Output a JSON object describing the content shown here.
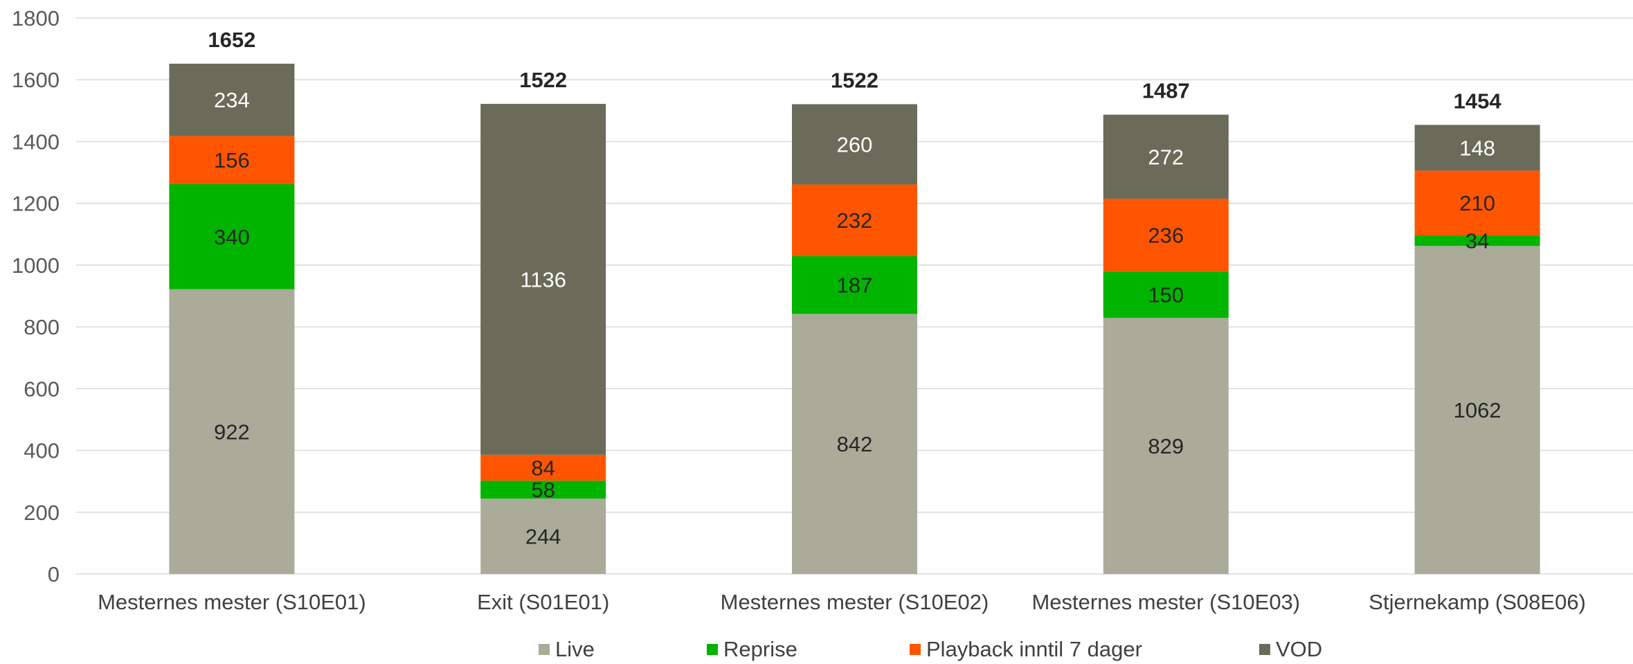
{
  "chart_data": {
    "type": "bar",
    "stacked": true,
    "categories": [
      "Mesternes mester (S10E01)",
      "Exit (S01E01)",
      "Mesternes mester (S10E02)",
      "Mesternes mester (S10E03)",
      "Stjernekamp (S08E06)"
    ],
    "series": [
      {
        "name": "Live",
        "color": "#aaab99",
        "values": [
          922,
          244,
          842,
          829,
          1062
        ]
      },
      {
        "name": "Reprise",
        "color": "#00b400",
        "values": [
          340,
          58,
          187,
          150,
          34
        ]
      },
      {
        "name": "Playback inntil 7 dager",
        "color": "#ff5500",
        "values": [
          156,
          84,
          232,
          236,
          210
        ]
      },
      {
        "name": "VOD",
        "color": "#6a6b59",
        "values": [
          234,
          1136,
          260,
          272,
          148
        ]
      }
    ],
    "totals": [
      1652,
      1522,
      1522,
      1487,
      1454
    ],
    "ylim": [
      0,
      1800
    ],
    "yticks": [
      0,
      200,
      400,
      600,
      800,
      1000,
      1200,
      1400,
      1600,
      1800
    ],
    "grid": true,
    "legend_position": "bottom"
  }
}
